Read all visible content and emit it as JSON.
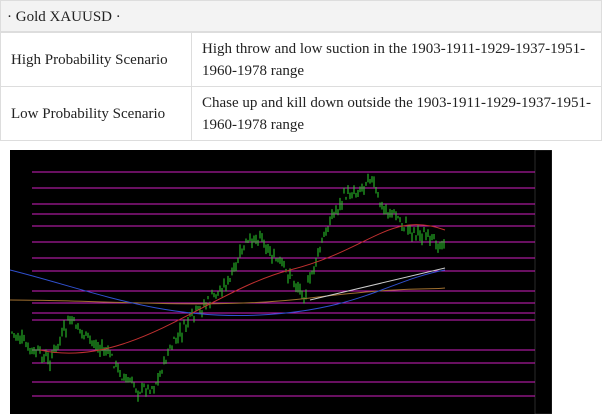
{
  "header": {
    "title": "· Gold XAUUSD ·"
  },
  "table": {
    "rows": [
      [
        "High Probability Scenario",
        "High throw and low suction in the 1903-1911-1929-1937-1951-1960-1978 range"
      ],
      [
        "Low Probability Scenario",
        "Chase up and kill down outside the 1903-1911-1929-1937-1951-1960-1978 range"
      ]
    ]
  }
}
